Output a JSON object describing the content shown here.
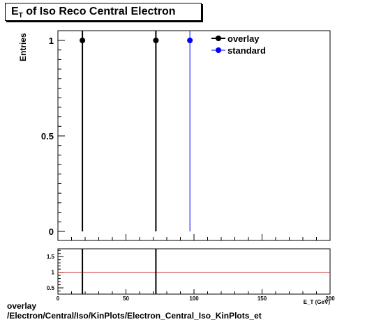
{
  "title": {
    "main": "E",
    "sub": "T",
    "rest": " of Iso Reco Central  Electron"
  },
  "footer": {
    "line1": "overlay",
    "line2": "/Electron/Central/Iso/KinPlots/Electron_Central_Iso_KinPlots_et"
  },
  "colors": {
    "overlay": "#000000",
    "standard": "#0000ff",
    "ratio_line": "#cc3333"
  },
  "chart_data": [
    {
      "type": "scatter",
      "ylabel": "Entries",
      "xlim": [
        0,
        200
      ],
      "ylim": [
        0,
        1.05
      ],
      "yticks": [
        {
          "value": 0,
          "label": "0"
        },
        {
          "value": 0.5,
          "label": "0.5"
        },
        {
          "value": 1,
          "label": "1"
        }
      ],
      "legend_position": "top-right",
      "series": [
        {
          "name": "overlay",
          "color": "#000000",
          "points": [
            {
              "x": 18,
              "y": 1
            },
            {
              "x": 72,
              "y": 1
            }
          ]
        },
        {
          "name": "standard",
          "color": "#0000ff",
          "points": [
            {
              "x": 97,
              "y": 1
            }
          ]
        }
      ]
    },
    {
      "type": "line",
      "xlabel": "E_T (GeV)",
      "xlim": [
        0,
        200
      ],
      "ylim": [
        0.3,
        1.75
      ],
      "xticks": [
        {
          "value": 0,
          "label": "0"
        },
        {
          "value": 50,
          "label": "50"
        },
        {
          "value": 100,
          "label": "100"
        },
        {
          "value": 150,
          "label": "150"
        },
        {
          "value": 200,
          "label": "200"
        }
      ],
      "yticks": [
        {
          "value": 0.5,
          "label": "0.5"
        },
        {
          "value": 1,
          "label": "1"
        },
        {
          "value": 1.5,
          "label": "1.5"
        }
      ],
      "reference_line": 1,
      "ratio_markers": [
        {
          "x": 18
        },
        {
          "x": 72
        }
      ]
    }
  ]
}
